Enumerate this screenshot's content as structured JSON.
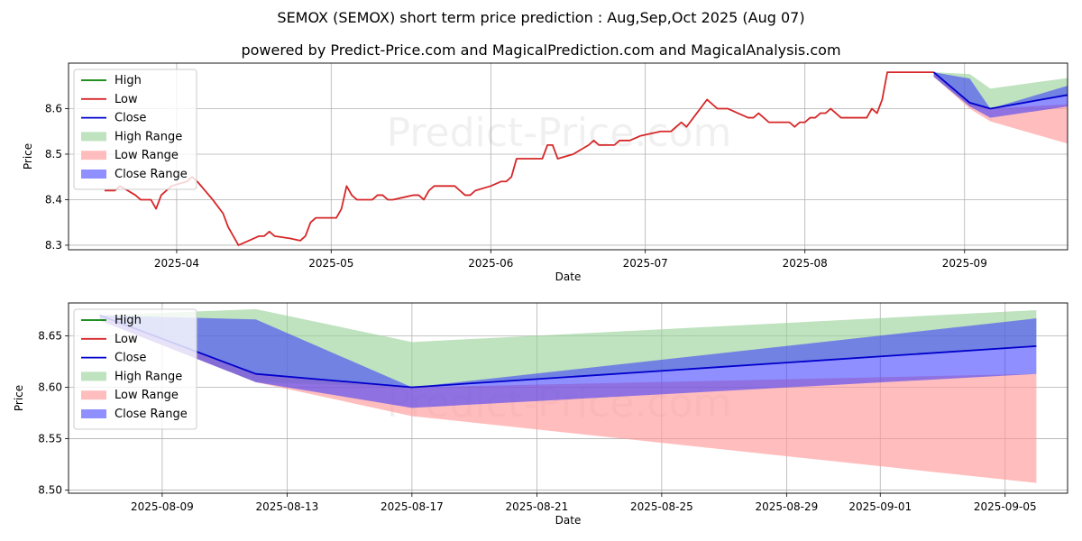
{
  "title": "SEMOX (SEMOX) short term price prediction : Aug,Sep,Oct 2025 (Aug 07)",
  "subtitle": "powered by Predict-Price.com and MagicalPrediction.com and MagicalAnalysis.com",
  "watermark": "Predict-Price.com",
  "colors": {
    "high": "#008000",
    "low": "#d62728",
    "close": "#0000cc",
    "high_range": "#98d098",
    "low_range": "#ff9a9a",
    "close_range": "#3333ff",
    "grid": "#b0b0b0"
  },
  "legend": [
    "High",
    "Low",
    "Close",
    "High Range",
    "Low Range",
    "Close Range"
  ],
  "chart_data": [
    {
      "type": "line",
      "xlabel": "Date",
      "ylabel": "Price",
      "ylim": [
        8.29,
        8.7
      ],
      "yticks": [
        8.3,
        8.4,
        8.5,
        8.6
      ],
      "xlim": [
        "2025-03-11",
        "2025-09-21"
      ],
      "xticks": [
        "2025-04",
        "2025-05",
        "2025-06",
        "2025-07",
        "2025-08",
        "2025-09"
      ],
      "grid": true,
      "legend_position": "upper-left",
      "low_series": [
        [
          "2025-03-18",
          8.42
        ],
        [
          "2025-03-20",
          8.42
        ],
        [
          "2025-03-21",
          8.43
        ],
        [
          "2025-03-24",
          8.41
        ],
        [
          "2025-03-25",
          8.4
        ],
        [
          "2025-03-27",
          8.4
        ],
        [
          "2025-03-28",
          8.38
        ],
        [
          "2025-03-29",
          8.41
        ],
        [
          "2025-03-31",
          8.43
        ],
        [
          "2025-04-03",
          8.44
        ],
        [
          "2025-04-04",
          8.45
        ],
        [
          "2025-04-05",
          8.44
        ],
        [
          "2025-04-08",
          8.4
        ],
        [
          "2025-04-10",
          8.37
        ],
        [
          "2025-04-11",
          8.34
        ],
        [
          "2025-04-13",
          8.3
        ],
        [
          "2025-04-15",
          8.31
        ],
        [
          "2025-04-17",
          8.32
        ],
        [
          "2025-04-18",
          8.32
        ],
        [
          "2025-04-19",
          8.33
        ],
        [
          "2025-04-20",
          8.32
        ],
        [
          "2025-04-23",
          8.315
        ],
        [
          "2025-04-25",
          8.31
        ],
        [
          "2025-04-26",
          8.32
        ],
        [
          "2025-04-27",
          8.35
        ],
        [
          "2025-04-28",
          8.36
        ],
        [
          "2025-04-30",
          8.36
        ],
        [
          "2025-05-02",
          8.36
        ],
        [
          "2025-05-03",
          8.38
        ],
        [
          "2025-05-04",
          8.43
        ],
        [
          "2025-05-05",
          8.41
        ],
        [
          "2025-05-06",
          8.4
        ],
        [
          "2025-05-09",
          8.4
        ],
        [
          "2025-05-10",
          8.41
        ],
        [
          "2025-05-11",
          8.41
        ],
        [
          "2025-05-12",
          8.4
        ],
        [
          "2025-05-13",
          8.4
        ],
        [
          "2025-05-15",
          8.405
        ],
        [
          "2025-05-17",
          8.41
        ],
        [
          "2025-05-18",
          8.41
        ],
        [
          "2025-05-19",
          8.4
        ],
        [
          "2025-05-20",
          8.42
        ],
        [
          "2025-05-21",
          8.43
        ],
        [
          "2025-05-23",
          8.43
        ],
        [
          "2025-05-25",
          8.43
        ],
        [
          "2025-05-27",
          8.41
        ],
        [
          "2025-05-28",
          8.41
        ],
        [
          "2025-05-29",
          8.42
        ],
        [
          "2025-06-01",
          8.43
        ],
        [
          "2025-06-03",
          8.44
        ],
        [
          "2025-06-04",
          8.44
        ],
        [
          "2025-06-05",
          8.45
        ],
        [
          "2025-06-06",
          8.49
        ],
        [
          "2025-06-09",
          8.49
        ],
        [
          "2025-06-10",
          8.49
        ],
        [
          "2025-06-11",
          8.49
        ],
        [
          "2025-06-12",
          8.52
        ],
        [
          "2025-06-13",
          8.52
        ],
        [
          "2025-06-14",
          8.49
        ],
        [
          "2025-06-17",
          8.5
        ],
        [
          "2025-06-20",
          8.52
        ],
        [
          "2025-06-21",
          8.53
        ],
        [
          "2025-06-22",
          8.52
        ],
        [
          "2025-06-24",
          8.52
        ],
        [
          "2025-06-25",
          8.52
        ],
        [
          "2025-06-26",
          8.53
        ],
        [
          "2025-06-27",
          8.53
        ],
        [
          "2025-06-28",
          8.53
        ],
        [
          "2025-06-30",
          8.54
        ],
        [
          "2025-07-02",
          8.545
        ],
        [
          "2025-07-04",
          8.55
        ],
        [
          "2025-07-06",
          8.55
        ],
        [
          "2025-07-08",
          8.57
        ],
        [
          "2025-07-09",
          8.56
        ],
        [
          "2025-07-11",
          8.59
        ],
        [
          "2025-07-13",
          8.62
        ],
        [
          "2025-07-15",
          8.6
        ],
        [
          "2025-07-17",
          8.6
        ],
        [
          "2025-07-19",
          8.59
        ],
        [
          "2025-07-21",
          8.58
        ],
        [
          "2025-07-22",
          8.58
        ],
        [
          "2025-07-23",
          8.59
        ],
        [
          "2025-07-25",
          8.57
        ],
        [
          "2025-07-28",
          8.57
        ],
        [
          "2025-07-29",
          8.57
        ],
        [
          "2025-07-30",
          8.56
        ],
        [
          "2025-07-31",
          8.57
        ],
        [
          "2025-08-01",
          8.57
        ],
        [
          "2025-08-02",
          8.58
        ],
        [
          "2025-08-03",
          8.58
        ],
        [
          "2025-08-04",
          8.59
        ],
        [
          "2025-08-05",
          8.59
        ],
        [
          "2025-08-06",
          8.6
        ],
        [
          "2025-08-07",
          8.59
        ],
        [
          "2025-08-08",
          8.58
        ],
        [
          "2025-08-10",
          8.58
        ],
        [
          "2025-08-12",
          8.58
        ],
        [
          "2025-08-13",
          8.58
        ],
        [
          "2025-08-14",
          8.6
        ],
        [
          "2025-08-15",
          8.59
        ],
        [
          "2025-08-16",
          8.62
        ],
        [
          "2025-08-17",
          8.68
        ],
        [
          "2025-08-20",
          8.68
        ],
        [
          "2025-08-24",
          8.68
        ],
        [
          "2025-08-26",
          8.68
        ]
      ],
      "close_series": [
        [
          "2025-08-26",
          8.68
        ],
        [
          "2025-09-02",
          8.613
        ],
        [
          "2025-09-06",
          8.6
        ],
        [
          "2025-09-26",
          8.64
        ]
      ],
      "high_range": [
        [
          "2025-08-26",
          8.68,
          8.67
        ],
        [
          "2025-09-02",
          8.676,
          8.605
        ],
        [
          "2025-09-06",
          8.644,
          8.6
        ],
        [
          "2025-09-26",
          8.675,
          8.64
        ]
      ],
      "low_range": [
        [
          "2025-08-26",
          8.68,
          8.67
        ],
        [
          "2025-09-02",
          8.613,
          8.6
        ],
        [
          "2025-09-06",
          8.6,
          8.572
        ],
        [
          "2025-09-26",
          8.613,
          8.507
        ]
      ],
      "close_range": [
        [
          "2025-08-26",
          8.68,
          8.67
        ],
        [
          "2025-09-02",
          8.666,
          8.605
        ],
        [
          "2025-09-06",
          8.6,
          8.58
        ],
        [
          "2025-09-26",
          8.667,
          8.613
        ]
      ]
    },
    {
      "type": "line",
      "xlabel": "Date",
      "ylabel": "Price",
      "ylim": [
        8.497,
        8.682
      ],
      "yticks": [
        8.5,
        8.55,
        8.6,
        8.65
      ],
      "ytick_labels": [
        "8.50",
        "8.55",
        "8.60",
        "8.65"
      ],
      "xlim": [
        "2025-08-06",
        "2025-09-07"
      ],
      "xticks": [
        "2025-08-09",
        "2025-08-13",
        "2025-08-17",
        "2025-08-21",
        "2025-08-25",
        "2025-08-29",
        "2025-09-01",
        "2025-09-05"
      ],
      "grid": true,
      "legend_position": "upper-left",
      "close_series": [
        [
          "2025-08-07",
          8.67
        ],
        [
          "2025-08-12",
          8.613
        ],
        [
          "2025-08-17",
          8.6
        ],
        [
          "2025-09-06",
          8.64
        ]
      ],
      "high_range": [
        [
          "2025-08-07",
          8.67,
          8.665
        ],
        [
          "2025-08-12",
          8.676,
          8.605
        ],
        [
          "2025-08-17",
          8.644,
          8.6
        ],
        [
          "2025-09-06",
          8.675,
          8.64
        ]
      ],
      "low_range": [
        [
          "2025-08-07",
          8.67,
          8.665
        ],
        [
          "2025-08-12",
          8.613,
          8.605
        ],
        [
          "2025-08-17",
          8.6,
          8.572
        ],
        [
          "2025-09-06",
          8.613,
          8.507
        ]
      ],
      "close_range": [
        [
          "2025-08-07",
          8.67,
          8.665
        ],
        [
          "2025-08-12",
          8.666,
          8.605
        ],
        [
          "2025-08-17",
          8.6,
          8.58
        ],
        [
          "2025-09-06",
          8.667,
          8.613
        ]
      ]
    }
  ]
}
